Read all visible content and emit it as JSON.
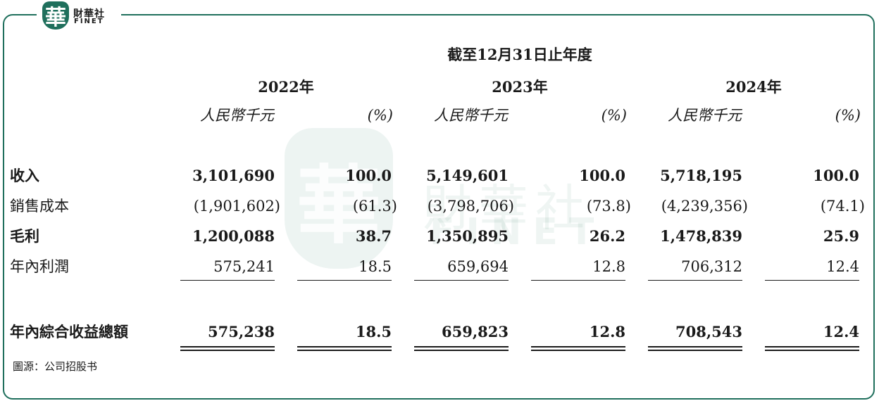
{
  "logo": {
    "seal": "華",
    "cn": "財華社",
    "en": "FINET"
  },
  "watermark": {
    "seal": "華",
    "cn": "財華社",
    "en": "FINET"
  },
  "header": {
    "period": "截至12月31日止年度",
    "years": [
      "2022年",
      "2023年",
      "2024年"
    ],
    "unit": "人民幣千元",
    "pct": "(%)"
  },
  "rows": [
    {
      "label": "收入",
      "bold": true,
      "values": [
        "3,101,690",
        "100.0",
        "5,149,601",
        "100.0",
        "5,718,195",
        "100.0"
      ]
    },
    {
      "label": "銷售成本",
      "bold": false,
      "values": [
        "(1,901,602)",
        "(61.3)",
        "(3,798,706)",
        "(73.8)",
        "(4,239,356)",
        "(74.1)"
      ]
    },
    {
      "label": "毛利",
      "bold": true,
      "values": [
        "1,200,088",
        "38.7",
        "1,350,895",
        "26.2",
        "1,478,839",
        "25.9"
      ]
    },
    {
      "label": "年內利潤",
      "bold": false,
      "values": [
        "575,241",
        "18.5",
        "659,694",
        "12.8",
        "706,312",
        "12.4"
      ]
    },
    {
      "label": "年內綜合收益總額",
      "bold": true,
      "values": [
        "575,238",
        "18.5",
        "659,823",
        "12.8",
        "708,543",
        "12.4"
      ]
    }
  ],
  "source": "圖源：公司招股书"
}
